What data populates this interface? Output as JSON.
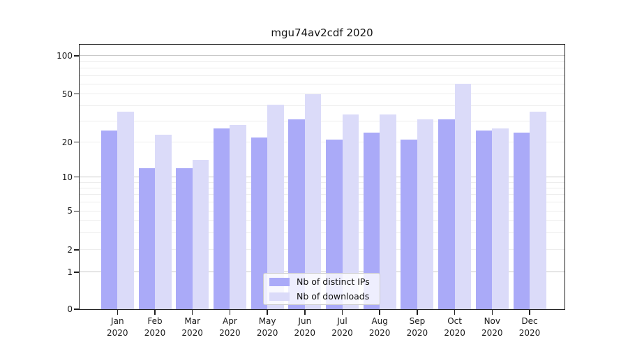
{
  "chart_data": {
    "type": "bar",
    "title": "mgu74av2cdf 2020",
    "categories": [
      "Jan",
      "Feb",
      "Mar",
      "Apr",
      "May",
      "Jun",
      "Jul",
      "Aug",
      "Sep",
      "Oct",
      "Nov",
      "Dec"
    ],
    "x_year_label": "2020",
    "series": [
      {
        "name": "Nb of distinct IPs",
        "color": "#aaaaf8",
        "values": [
          25,
          12,
          12,
          26,
          22,
          31,
          21,
          24,
          21,
          31,
          25,
          24
        ]
      },
      {
        "name": "Nb of downloads",
        "color": "#dbdbf9",
        "values": [
          36,
          23,
          14,
          28,
          41,
          50,
          34,
          34,
          31,
          60,
          26,
          36
        ]
      }
    ],
    "xlabel": "",
    "ylabel": "",
    "y_tick_labels": [
      "100",
      "50",
      "20",
      "10",
      "5",
      "2",
      "1",
      "0"
    ],
    "y_tick_values": [
      100,
      50,
      20,
      10,
      5,
      2,
      1,
      0
    ],
    "yscale": "symlog-like (log above 1, linear to 0)",
    "ylim": [
      0,
      115
    ],
    "grid": "horizontal; faint minors at 2-9,20-90; darker majors at 1,10,100",
    "legend_position": "lower center",
    "colors": {
      "bar_dark": "#aaaaf8",
      "bar_light": "#dbdbf9",
      "grid_major": "#c9c9c9",
      "grid_minor": "#ededed",
      "spine": "#1f1f1f",
      "text": "#1a1a1a"
    }
  }
}
